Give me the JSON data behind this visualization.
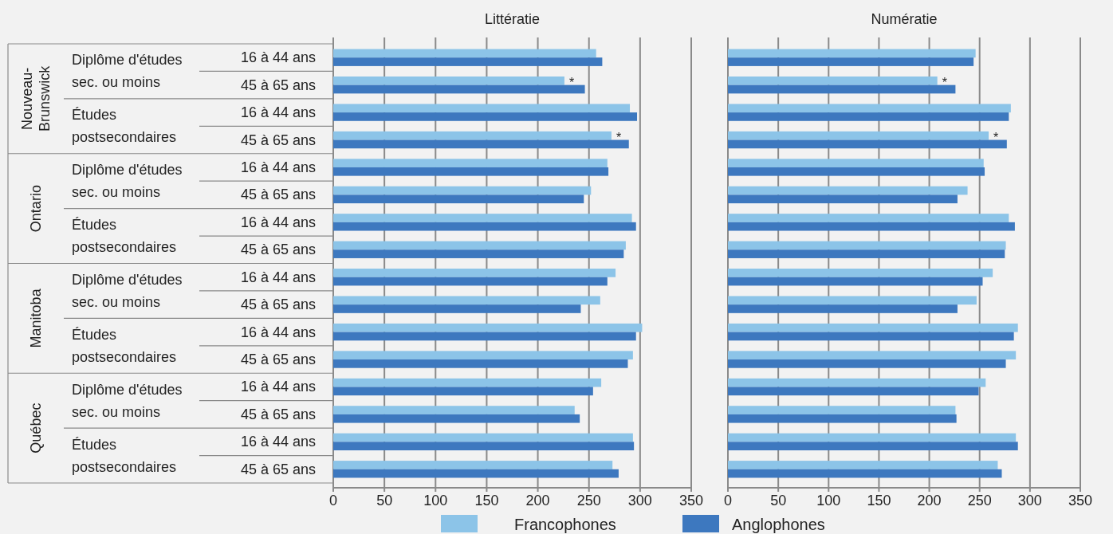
{
  "chart_data": [
    {
      "type": "bar",
      "orientation": "horizontal",
      "title": "Littératie",
      "categories": [
        "16 à 44 ans",
        "45 à 65 ans",
        "16 à 44 ans",
        "45 à 65 ans",
        "16 à 44 ans",
        "45 à 65 ans",
        "16 à 44 ans",
        "45 à 65 ans",
        "16 à 44 ans",
        "45 à 65 ans",
        "16 à 44 ans",
        "45 à 65 ans",
        "16 à 44 ans",
        "45 à 65 ans",
        "16 à 44 ans",
        "45 à 65 ans"
      ],
      "series": [
        {
          "name": "Francophones",
          "color": "#8cc4e8",
          "values": [
            257,
            226,
            290,
            272,
            268,
            252,
            292,
            286,
            276,
            261,
            302,
            293,
            262,
            236,
            293,
            273
          ],
          "value_labels": [
            null,
            "*",
            null,
            "*",
            null,
            null,
            null,
            null,
            null,
            null,
            null,
            null,
            null,
            null,
            null,
            null
          ]
        },
        {
          "name": "Anglophones",
          "color": "#3d78bf",
          "values": [
            263,
            246,
            297,
            289,
            269,
            245,
            296,
            284,
            268,
            242,
            296,
            288,
            254,
            241,
            294,
            279
          ]
        }
      ],
      "xlim": [
        0,
        350
      ],
      "xticks": [
        0,
        50,
        100,
        150,
        200,
        250,
        300,
        350
      ],
      "grid": "x",
      "legend": "bottom",
      "annotations": [
        "Nouveau-Brunswick",
        "Ontario",
        "Manitoba",
        "Québec",
        "Diplôme d'études sec. ou moins",
        "Études postsecondaires",
        "Diplôme d'études sec. ou moins",
        "Études postsecondaires",
        "Diplôme d'études sec. ou moins",
        "Études postsecondaires",
        "Diplôme d'études sec. ou moins",
        "Études postsecondaires"
      ]
    },
    {
      "type": "bar",
      "orientation": "horizontal",
      "title": "Numératie",
      "categories": [
        null,
        null,
        null,
        null,
        null,
        null,
        null,
        null,
        null,
        null,
        null,
        null,
        null,
        null,
        null,
        null
      ],
      "series": [
        {
          "color": "#8cc4e8",
          "values": [
            246,
            208,
            281,
            259,
            254,
            238,
            279,
            276,
            263,
            247,
            288,
            286,
            256,
            226,
            286,
            268
          ],
          "value_labels": [
            null,
            "*",
            null,
            "*",
            null,
            null,
            null,
            null,
            null,
            null,
            null,
            null,
            null,
            null,
            null,
            null
          ]
        },
        {
          "color": "#3d78bf",
          "values": [
            244,
            226,
            279,
            277,
            255,
            228,
            285,
            275,
            253,
            228,
            284,
            276,
            249,
            227,
            288,
            272
          ]
        }
      ],
      "xlim": [
        0,
        350
      ],
      "xticks": [
        0,
        50,
        100,
        150,
        200,
        250,
        300,
        350
      ],
      "grid": "x"
    }
  ]
}
